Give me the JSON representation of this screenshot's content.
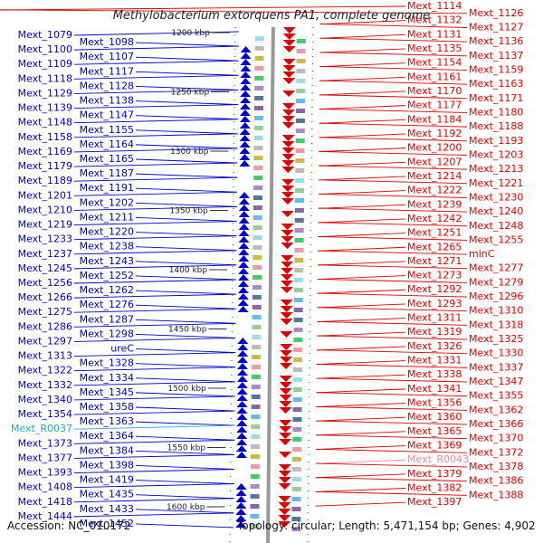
{
  "title": "Methylobacterium extorquens PA1, complete genome",
  "footer": {
    "accession": "Accession: NC_010172",
    "summary": "Topology: circular; Length: 5,471,154 bp; Genes: 4,902"
  },
  "colors": {
    "left_strand": "#0000cc",
    "right_strand": "#dd0000",
    "rna_left": "#22aacc",
    "rna_right": "#ee88aa",
    "backbone": "#999999",
    "gc_dots": "#228822"
  },
  "scale_ticks": [
    "1200 kbp",
    "1250 kbp",
    "1300 kbp",
    "1350 kbp",
    "1400 kbp",
    "1450 kbp",
    "1500 kbp",
    "1550 kbp",
    "1600 kbp"
  ],
  "left_genes": [
    "Mext_1079",
    "Mext_1098",
    "Mext_1100",
    "Mext_1107",
    "Mext_1109",
    "Mext_1117",
    "Mext_1118",
    "Mext_1128",
    "Mext_1129",
    "Mext_1138",
    "Mext_1139",
    "Mext_1147",
    "Mext_1148",
    "Mext_1155",
    "Mext_1158",
    "Mext_1164",
    "Mext_1169",
    "Mext_1165",
    "Mext_1179",
    "Mext_1187",
    "Mext_1189",
    "Mext_1191",
    "Mext_1201",
    "Mext_1202",
    "Mext_1210",
    "Mext_1211",
    "Mext_1219",
    "Mext_1220",
    "Mext_1233",
    "Mext_1238",
    "Mext_1237",
    "Mext_1243",
    "Mext_1245",
    "Mext_1252",
    "Mext_1256",
    "Mext_1262",
    "Mext_1266",
    "Mext_1276",
    "Mext_1275",
    "Mext_1287",
    "Mext_1286",
    "Mext_1298",
    "Mext_1297",
    "ureC",
    "Mext_1313",
    "Mext_1328",
    "Mext_1322",
    "Mext_1334",
    "Mext_1332",
    "Mext_1345",
    "Mext_1340",
    "Mext_1358",
    "Mext_1354",
    "Mext_1363",
    "Mext_R0037",
    "Mext_1364",
    "Mext_1373",
    "Mext_1384",
    "Mext_1377",
    "Mext_1398",
    "Mext_1393",
    "Mext_1419",
    "Mext_1408",
    "Mext_1435",
    "Mext_1418",
    "Mext_1433",
    "Mext_1444",
    "Mext_1452"
  ],
  "right_genes": [
    "Mext_1114",
    "Mext_1126",
    "Mext_1132",
    "Mext_1127",
    "Mext_1131",
    "Mext_1136",
    "Mext_1135",
    "Mext_1137",
    "Mext_1154",
    "Mext_1159",
    "Mext_1161",
    "Mext_1163",
    "Mext_1170",
    "Mext_1171",
    "Mext_1177",
    "Mext_1180",
    "Mext_1184",
    "Mext_1188",
    "Mext_1192",
    "Mext_1193",
    "Mext_1200",
    "Mext_1203",
    "Mext_1207",
    "Mext_1213",
    "Mext_1214",
    "Mext_1221",
    "Mext_1222",
    "Mext_1230",
    "Mext_1239",
    "Mext_1240",
    "Mext_1242",
    "Mext_1248",
    "Mext_1251",
    "Mext_1255",
    "Mext_1265",
    "minC",
    "Mext_1271",
    "Mext_1277",
    "Mext_1273",
    "Mext_1279",
    "Mext_1292",
    "Mext_1296",
    "Mext_1293",
    "Mext_1310",
    "Mext_1311",
    "Mext_1318",
    "Mext_1319",
    "Mext_1325",
    "Mext_1326",
    "Mext_1330",
    "Mext_1331",
    "Mext_1337",
    "Mext_1338",
    "Mext_1347",
    "Mext_1341",
    "Mext_1355",
    "Mext_1356",
    "Mext_1362",
    "Mext_1360",
    "Mext_1366",
    "Mext_1365",
    "Mext_1370",
    "Mext_1369",
    "Mext_1372",
    "Mext_R0043",
    "Mext_1378",
    "Mext_1379",
    "Mext_1386",
    "Mext_1382",
    "Mext_1388",
    "Mext_1397"
  ]
}
